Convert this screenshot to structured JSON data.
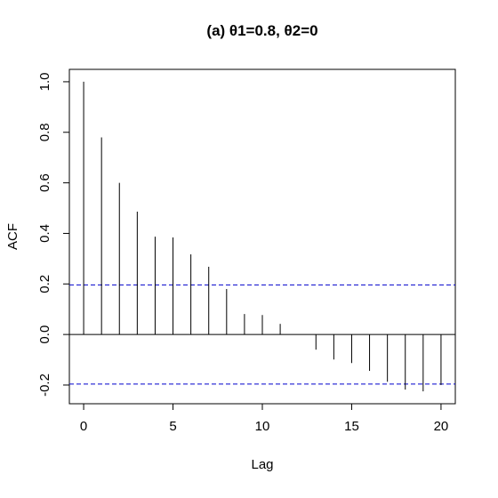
{
  "chart_data": {
    "type": "acf",
    "title": "(a)  θ1=0.8, θ2=0",
    "x_label": "Lag",
    "y_label": "ACF",
    "x": [
      0,
      1,
      2,
      3,
      4,
      5,
      6,
      7,
      8,
      9,
      10,
      11,
      12,
      13,
      14,
      15,
      16,
      17,
      18,
      19,
      20
    ],
    "values": [
      1.0,
      0.78,
      0.6,
      0.486,
      0.387,
      0.384,
      0.317,
      0.268,
      0.18,
      0.081,
      0.077,
      0.042,
      0,
      -0.06,
      -0.099,
      -0.113,
      -0.144,
      -0.187,
      -0.218,
      -0.225,
      -0.2
    ],
    "color": "#000000",
    "ci_lines": [
      0.196,
      -0.196
    ],
    "ci_color": "#0000cc",
    "xlim": [
      -0.8,
      20.8
    ],
    "xticks": [
      0,
      5,
      10,
      15,
      20
    ],
    "ylim": [
      -0.274,
      1.049
    ],
    "yticks": [
      {
        "value": -0.2,
        "label": "-0.2"
      },
      {
        "value": 0,
        "label": "0.0"
      },
      0.2,
      0.4,
      0.6,
      0.8,
      {
        "value": 1,
        "label": "1.0"
      }
    ]
  }
}
